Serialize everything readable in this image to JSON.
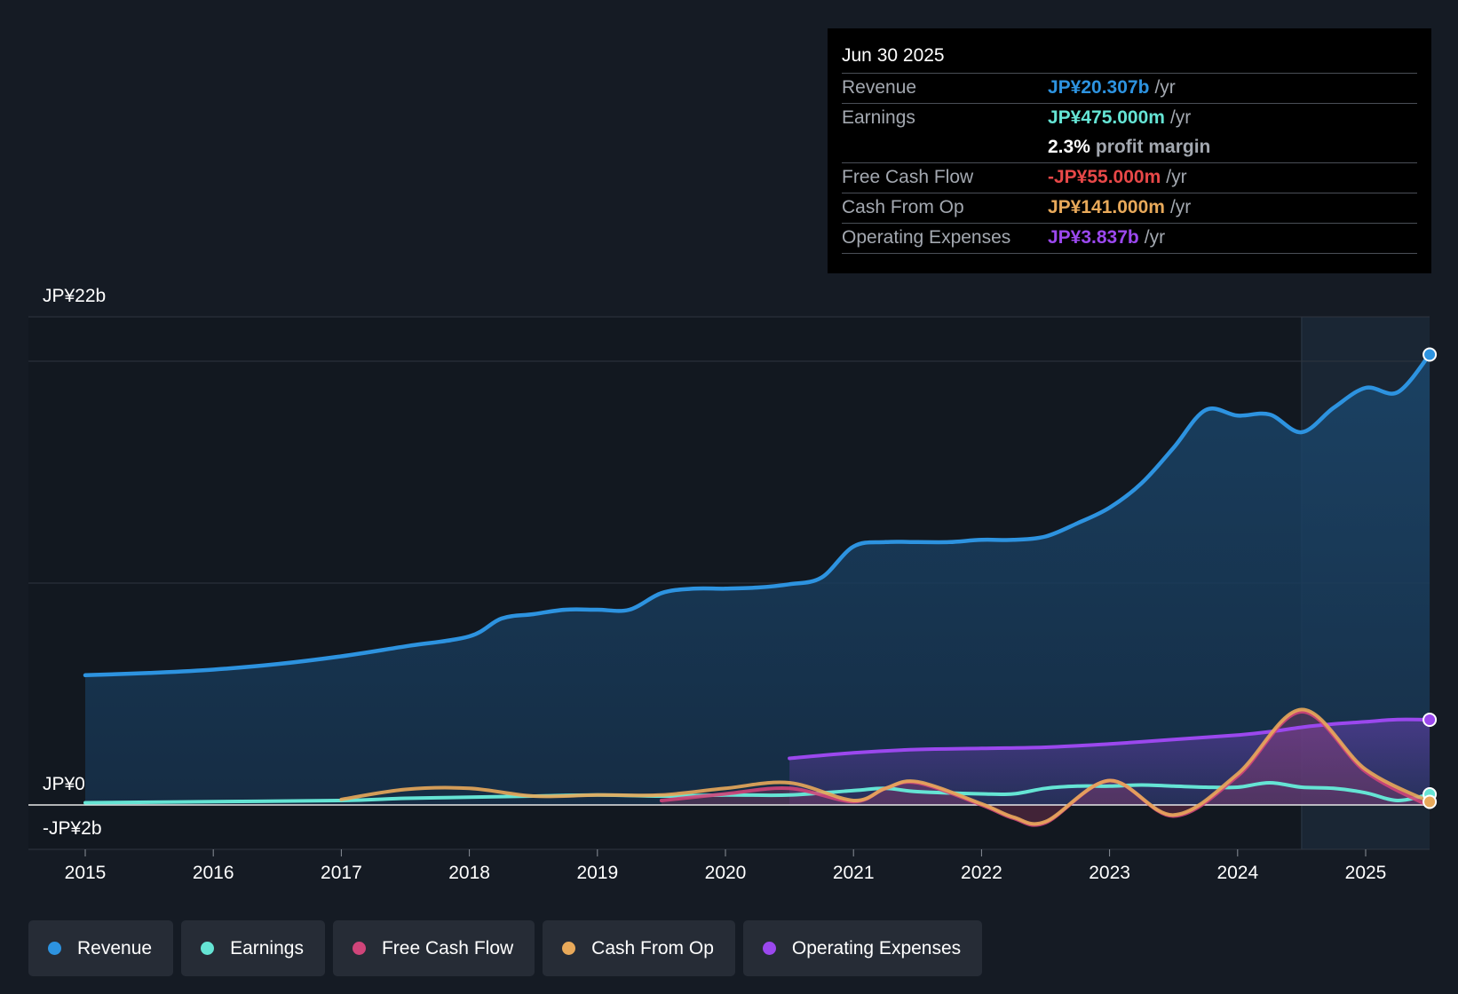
{
  "tooltip": {
    "date": "Jun 30 2025",
    "revenue_label": "Revenue",
    "revenue_value": "JP¥20.307b",
    "revenue_unit": "/yr",
    "earnings_label": "Earnings",
    "earnings_value": "JP¥475.000m",
    "earnings_unit": "/yr",
    "margin_value": "2.3%",
    "margin_label": "profit margin",
    "fcf_label": "Free Cash Flow",
    "fcf_value": "-JP¥55.000m",
    "fcf_unit": "/yr",
    "cfo_label": "Cash From Op",
    "cfo_value": "JP¥141.000m",
    "cfo_unit": "/yr",
    "opex_label": "Operating Expenses",
    "opex_value": "JP¥3.837b",
    "opex_unit": "/yr"
  },
  "legend": [
    "Revenue",
    "Earnings",
    "Free Cash Flow",
    "Cash From Op",
    "Operating Expenses"
  ],
  "colors": {
    "revenue": "#2d93e0",
    "earnings": "#65e4d4",
    "fcf": "#d0457a",
    "cfo": "#e8a95a",
    "opex": "#9b48ee"
  },
  "chart_data": {
    "type": "line",
    "title": "",
    "xlabel": "",
    "ylabel": "",
    "y_top_label": "JP¥22b",
    "y_zero_label": "JP¥0",
    "y_bottom_label": "-JP¥2b",
    "ylim": [
      -2,
      22
    ],
    "x_ticks": [
      "2015",
      "2016",
      "2017",
      "2018",
      "2019",
      "2020",
      "2021",
      "2022",
      "2023",
      "2024",
      "2025"
    ],
    "x_tick_values": [
      2015,
      2016,
      2017,
      2018,
      2019,
      2020,
      2021,
      2022,
      2023,
      2024,
      2025
    ],
    "xlim": [
      2014.55,
      2025.5
    ],
    "highlight_start": 2024.5,
    "series": [
      {
        "name": "Revenue",
        "key": "revenue",
        "x": [
          2015,
          2015.5,
          2016,
          2016.5,
          2017,
          2017.5,
          2018,
          2018.25,
          2018.5,
          2018.75,
          2019,
          2019.25,
          2019.5,
          2019.75,
          2020,
          2020.25,
          2020.5,
          2020.75,
          2021,
          2021.25,
          2021.5,
          2021.75,
          2022,
          2022.25,
          2022.5,
          2022.75,
          2023,
          2023.25,
          2023.5,
          2023.75,
          2024,
          2024.25,
          2024.5,
          2024.75,
          2025,
          2025.25,
          2025.5
        ],
        "values": [
          5.85,
          5.95,
          6.1,
          6.35,
          6.7,
          7.15,
          7.6,
          8.4,
          8.6,
          8.8,
          8.8,
          8.8,
          9.55,
          9.75,
          9.75,
          9.8,
          9.95,
          10.25,
          11.65,
          11.85,
          11.85,
          11.85,
          11.95,
          11.95,
          12.1,
          12.7,
          13.4,
          14.5,
          16.1,
          17.8,
          17.55,
          17.6,
          16.8,
          17.9,
          18.8,
          18.6,
          20.3
        ]
      },
      {
        "name": "Earnings",
        "key": "earnings",
        "x": [
          2015,
          2016,
          2017,
          2017.5,
          2018,
          2018.5,
          2019,
          2019.5,
          2020,
          2020.5,
          2021,
          2021.25,
          2021.5,
          2022,
          2022.25,
          2022.5,
          2022.75,
          2023,
          2023.25,
          2023.5,
          2023.75,
          2024,
          2024.25,
          2024.5,
          2024.75,
          2025,
          2025.25,
          2025.5
        ],
        "values": [
          0.1,
          0.15,
          0.2,
          0.3,
          0.35,
          0.4,
          0.45,
          0.4,
          0.45,
          0.45,
          0.65,
          0.75,
          0.6,
          0.5,
          0.5,
          0.75,
          0.85,
          0.85,
          0.9,
          0.85,
          0.8,
          0.8,
          1.0,
          0.8,
          0.75,
          0.55,
          0.2,
          0.48
        ]
      },
      {
        "name": "Free Cash Flow",
        "key": "fcf",
        "x": [
          2019.5,
          2020,
          2020.5,
          2021,
          2021.25,
          2021.5,
          2022,
          2022.25,
          2022.5,
          2023,
          2023.5,
          2024,
          2024.5,
          2025,
          2025.5
        ],
        "values": [
          0.2,
          0.5,
          0.75,
          0.15,
          0.75,
          1.0,
          0.0,
          -0.6,
          -0.8,
          1.1,
          -0.5,
          1.3,
          4.2,
          1.5,
          -0.06
        ]
      },
      {
        "name": "Cash From Op",
        "key": "cfo",
        "x": [
          2017,
          2017.5,
          2018,
          2018.5,
          2019,
          2019.5,
          2020,
          2020.5,
          2021,
          2021.25,
          2021.5,
          2022,
          2022.25,
          2022.5,
          2023,
          2023.5,
          2024,
          2024.5,
          2025,
          2025.5
        ],
        "values": [
          0.25,
          0.7,
          0.75,
          0.4,
          0.45,
          0.45,
          0.75,
          1.0,
          0.2,
          0.75,
          1.05,
          0.05,
          -0.55,
          -0.75,
          1.1,
          -0.45,
          1.4,
          4.3,
          1.6,
          0.14
        ]
      },
      {
        "name": "Operating Expenses",
        "key": "opex",
        "x": [
          2020.5,
          2021,
          2021.5,
          2022,
          2022.5,
          2023,
          2023.5,
          2024,
          2024.25,
          2024.5,
          2024.75,
          2025,
          2025.25,
          2025.5
        ],
        "values": [
          2.1,
          2.35,
          2.5,
          2.55,
          2.6,
          2.75,
          2.95,
          3.15,
          3.3,
          3.5,
          3.65,
          3.75,
          3.85,
          3.84
        ]
      }
    ]
  }
}
